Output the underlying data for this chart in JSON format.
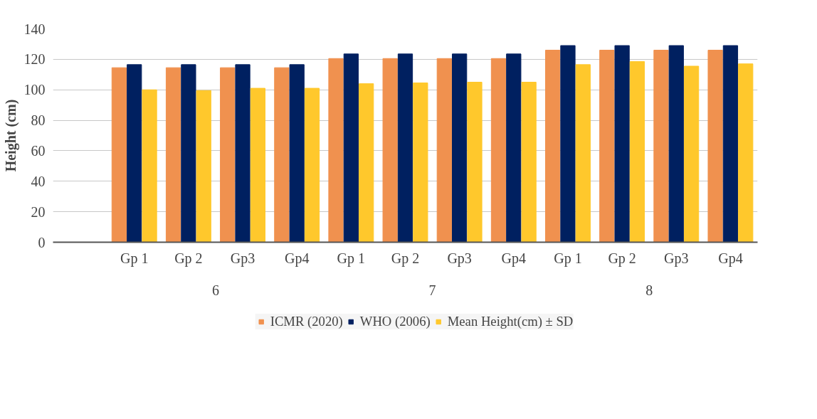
{
  "chart_data": {
    "type": "bar",
    "ylabel": "Height (cm)",
    "categories": [
      null,
      "Gp 1",
      "Gp 2",
      "Gp3",
      "Gp4",
      "Gp 1",
      "Gp 2",
      "Gp3",
      "Gp4",
      "Gp 1",
      "Gp 2",
      "Gp3",
      "Gp4"
    ],
    "annotations": [
      "6",
      "7",
      "8"
    ],
    "series": [
      {
        "name": "ICMR (2020)",
        "color": "#f0914f",
        "values": [
          null,
          114.5,
          114.5,
          114.5,
          114.5,
          120.5,
          120.5,
          120.5,
          120.5,
          126,
          126,
          126,
          126
        ]
      },
      {
        "name": "WHO (2006)",
        "color": "#002060",
        "values": [
          null,
          116.5,
          116.5,
          116.5,
          116.5,
          123.5,
          123.5,
          123.5,
          123.5,
          129,
          129,
          129,
          129
        ]
      },
      {
        "name": "Mean Height(cm) ± SD",
        "color": "#ffc82c",
        "values": [
          null,
          100,
          99.5,
          101,
          101,
          104,
          104.5,
          105,
          105,
          116.5,
          118.5,
          115.5,
          117
        ]
      }
    ],
    "ylim": [
      0,
      140
    ],
    "yticks": [
      0,
      20,
      40,
      60,
      80,
      100,
      120,
      140
    ],
    "grid": "y",
    "legend": "bottom"
  }
}
